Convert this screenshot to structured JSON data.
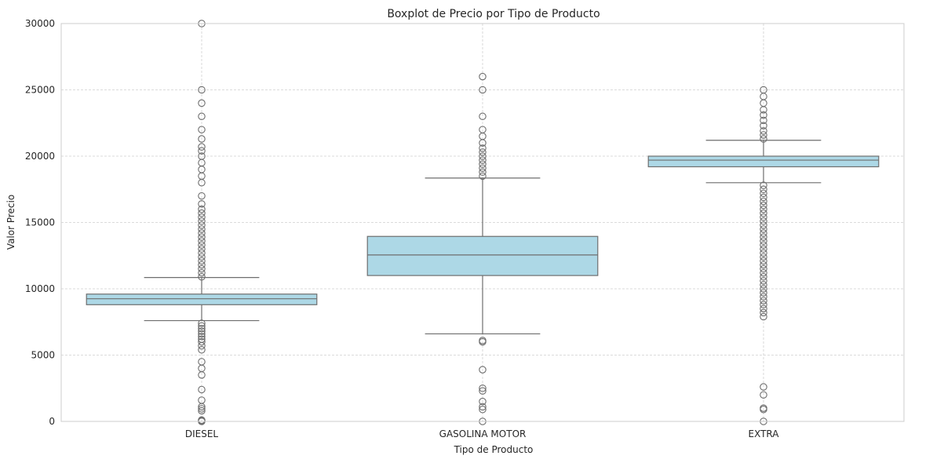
{
  "chart_data": {
    "type": "box",
    "title": "Boxplot de Precio por Tipo de Producto",
    "xlabel": "Tipo de Producto",
    "ylabel": "Valor Precio",
    "ylim": [
      0,
      30000
    ],
    "yticks": [
      0,
      5000,
      10000,
      15000,
      20000,
      25000,
      30000
    ],
    "grid": true,
    "box_color": "#add8e6",
    "line_color": "#6e6e6e",
    "categories": [
      "DIESEL",
      "GASOLINA MOTOR",
      "EXTRA"
    ],
    "boxes": [
      {
        "category": "DIESEL",
        "whisker_low": 7600,
        "q1": 8800,
        "median": 9250,
        "q3": 9600,
        "whisker_high": 10850,
        "fliers": [
          0,
          50,
          100,
          800,
          950,
          1100,
          1600,
          2400,
          3500,
          4000,
          4500,
          5400,
          5700,
          6000,
          6200,
          6400,
          6600,
          6800,
          7000,
          7200,
          7400,
          10900,
          11200,
          11500,
          11800,
          12100,
          12400,
          12700,
          13000,
          13300,
          13600,
          13900,
          14200,
          14500,
          14800,
          15100,
          15400,
          15700,
          16000,
          16400,
          17000,
          18000,
          18500,
          19000,
          19500,
          20000,
          20400,
          20700,
          21300,
          22000,
          23000,
          24000,
          25000,
          30000
        ]
      },
      {
        "category": "GASOLINA MOTOR",
        "whisker_low": 6600,
        "q1": 11000,
        "median": 12550,
        "q3": 13950,
        "whisker_high": 18350,
        "fliers": [
          0,
          900,
          1100,
          1500,
          2300,
          2500,
          3900,
          6000,
          6100,
          18500,
          18800,
          19100,
          19400,
          19700,
          20000,
          20300,
          20600,
          21000,
          21500,
          22000,
          23000,
          25000,
          26000
        ]
      },
      {
        "category": "EXTRA",
        "whisker_low": 18000,
        "q1": 19200,
        "median": 19700,
        "q3": 20000,
        "whisker_high": 21200,
        "fliers": [
          0,
          900,
          1000,
          2000,
          2600,
          7900,
          8200,
          8500,
          8800,
          9100,
          9400,
          9700,
          10000,
          10300,
          10600,
          10900,
          11200,
          11500,
          11800,
          12100,
          12400,
          12700,
          13000,
          13300,
          13600,
          13900,
          14200,
          14500,
          14800,
          15100,
          15400,
          15700,
          16000,
          16300,
          16600,
          16900,
          17200,
          17500,
          17800,
          21300,
          21600,
          21900,
          22300,
          22700,
          23100,
          23500,
          24000,
          24500,
          25000
        ]
      }
    ]
  }
}
